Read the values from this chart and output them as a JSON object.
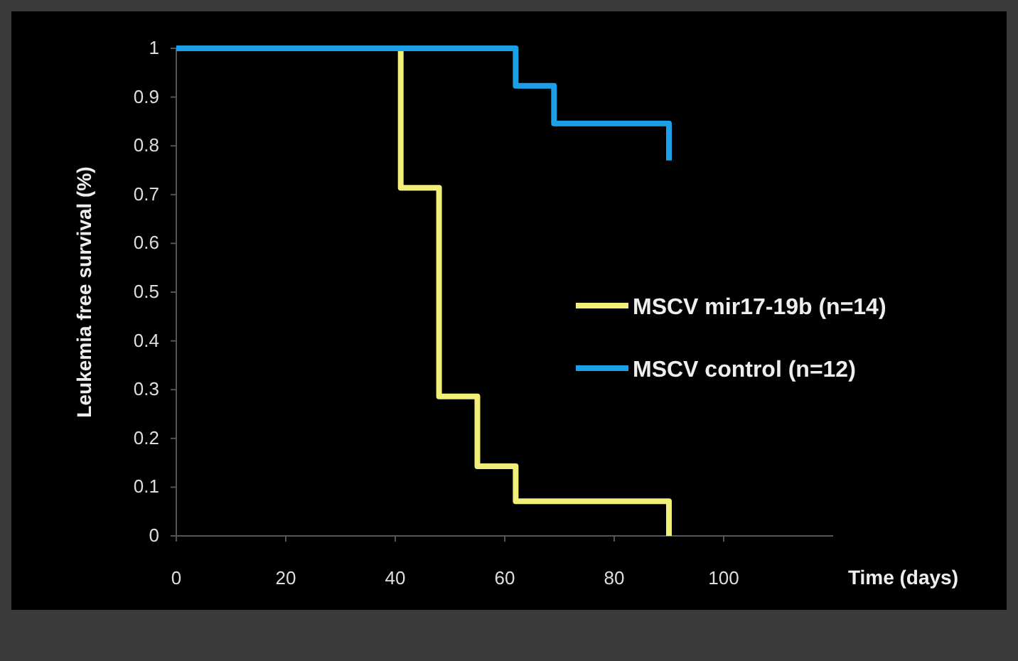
{
  "chart_data": {
    "type": "step",
    "xlabel": "Time (days)",
    "ylabel": "Leukemia free survival (%)",
    "series": [
      {
        "name": "MSCV mir17-19b (n=14)",
        "color": "#f2ee7a",
        "x": [
          0,
          41,
          48,
          55,
          62,
          90
        ],
        "values": [
          1,
          0.714,
          0.286,
          0.143,
          0.071,
          0
        ]
      },
      {
        "name": "MSCV control (n=12)",
        "color": "#1b9fe6",
        "x": [
          0,
          62,
          69,
          90
        ],
        "values": [
          1,
          0.923,
          0.846,
          0.77
        ]
      }
    ],
    "xlim": [
      0,
      120
    ],
    "xticks": [
      0,
      20,
      40,
      60,
      80,
      100
    ],
    "ylim": [
      0,
      1
    ],
    "yticks": [
      0,
      {
        "value": 0.1,
        "label": "0.1"
      },
      {
        "value": 0.2,
        "label": "0.2"
      },
      {
        "value": 0.3,
        "label": "0.3"
      },
      {
        "value": 0.4,
        "label": "0.4"
      },
      {
        "value": 0.5,
        "label": "0.5"
      },
      {
        "value": 0.6,
        "label": "0.6"
      },
      {
        "value": 0.7,
        "label": "0.7"
      },
      {
        "value": 0.8,
        "label": "0.8"
      },
      {
        "value": 0.9,
        "label": "0.9"
      },
      1
    ],
    "grid": false,
    "legend": "right",
    "line_style": "solid"
  }
}
